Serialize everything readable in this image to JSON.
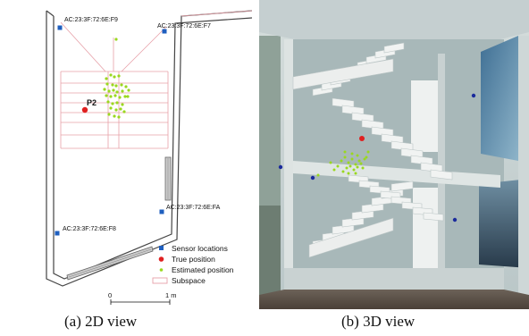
{
  "figure": {
    "panels": [
      {
        "caption": "(a) 2D view"
      },
      {
        "caption": "(b) 3D view"
      }
    ]
  },
  "floorplan": {
    "sensors": [
      {
        "id": "AC:23:3F:72:6E:F9"
      },
      {
        "id": "AC:23:3F:72:6E:F7"
      },
      {
        "id": "AC:23:3F:72:6E:FA"
      },
      {
        "id": "AC:23:3F:72:6E:F8"
      }
    ],
    "point_label": "P2",
    "legend": [
      {
        "label": "Sensor locations",
        "color": "#1f5fbf",
        "shape": "square"
      },
      {
        "label": "True position",
        "color": "#e02020",
        "shape": "dot"
      },
      {
        "label": "Estimated position",
        "color": "#9ad81f",
        "shape": "dot"
      },
      {
        "label": "Subspace",
        "color": "#e7a0a8",
        "shape": "rectangle-outline"
      }
    ],
    "scale_bar": {
      "start_label": "0",
      "end_label": "1 m"
    }
  },
  "scene3d": {
    "sensor_color": "#1a2a9c",
    "true_position_color": "#e02020",
    "estimate_color": "#9ad81f"
  }
}
